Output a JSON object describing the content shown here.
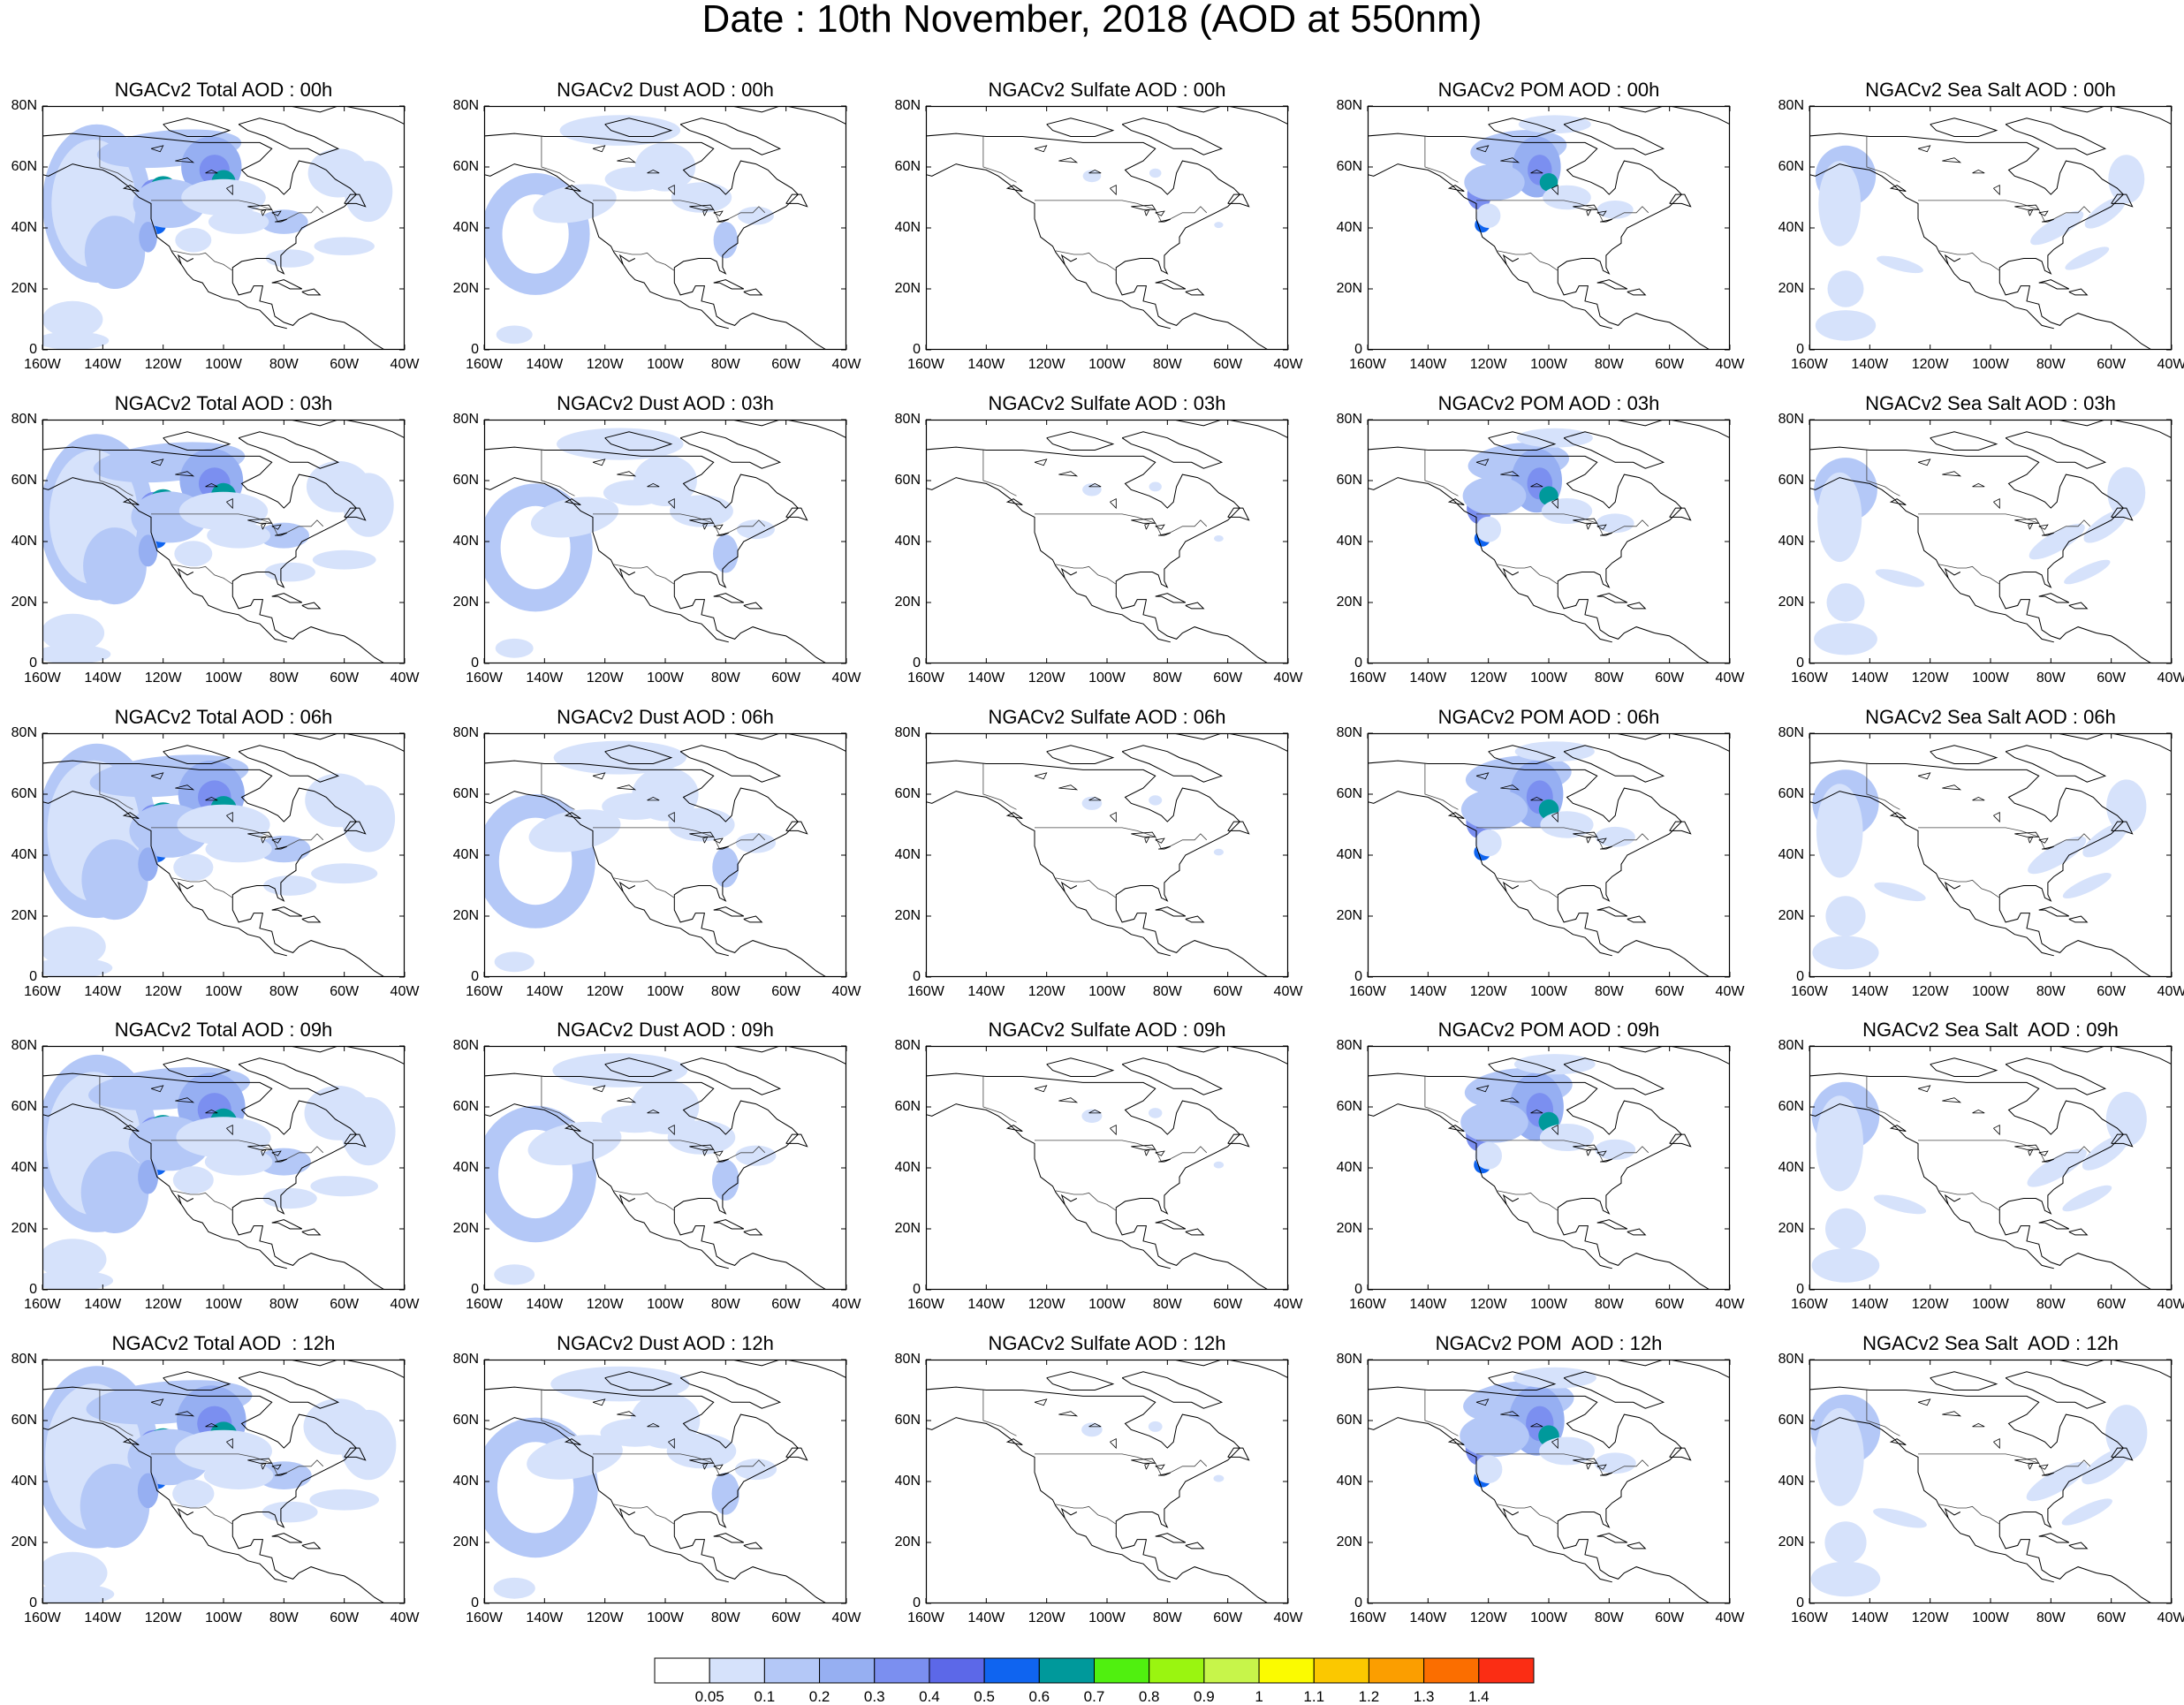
{
  "title": "Date : 10th November, 2018 (AOD at 550nm)",
  "x_tick_labels": [
    "160W",
    "140W",
    "120W",
    "100W",
    "80W",
    "60W",
    "40W"
  ],
  "y_tick_labels": [
    "0",
    "20N",
    "40N",
    "60N",
    "80N"
  ],
  "lon_range": [
    -160,
    -40
  ],
  "lat_range": [
    0,
    80
  ],
  "columns": [
    "total",
    "dust",
    "sulfate",
    "pom",
    "seasalt"
  ],
  "panels": [
    [
      "NGACv2 Total AOD : 00h",
      "NGACv2 Dust AOD : 00h",
      "NGACv2 Sulfate AOD : 00h",
      "NGACv2 POM AOD : 00h",
      "NGACv2 Sea Salt AOD : 00h"
    ],
    [
      "NGACv2 Total AOD : 03h",
      "NGACv2 Dust AOD : 03h",
      "NGACv2 Sulfate AOD : 03h",
      "NGACv2 POM AOD : 03h",
      "NGACv2 Sea Salt AOD : 03h"
    ],
    [
      "NGACv2 Total AOD : 06h",
      "NGACv2 Dust AOD : 06h",
      "NGACv2 Sulfate AOD : 06h",
      "NGACv2 POM AOD : 06h",
      "NGACv2 Sea Salt AOD : 06h"
    ],
    [
      "NGACv2 Total AOD : 09h",
      "NGACv2 Dust AOD : 09h",
      "NGACv2 Sulfate AOD : 09h",
      "NGACv2 POM AOD : 09h",
      "NGACv2 Sea Salt  AOD : 09h"
    ],
    [
      "NGACv2 Total AOD  : 12h",
      "NGACv2 Dust AOD : 12h",
      "NGACv2 Sulfate AOD : 12h",
      "NGACv2 POM  AOD : 12h",
      "NGACv2 Sea Salt  AOD : 12h"
    ]
  ],
  "colorbar": {
    "colors": [
      "#ffffff",
      "#d6e2fb",
      "#b4c8f7",
      "#96aff2",
      "#7b8ff0",
      "#5c68e8",
      "#0f64f0",
      "#00999b",
      "#50f00f",
      "#9af510",
      "#c7f54a",
      "#fbfb00",
      "#fbc800",
      "#fb9e00",
      "#fb6e00",
      "#fb2d14"
    ],
    "labels": [
      "0.05",
      "0.1",
      "0.2",
      "0.3",
      "0.4",
      "0.5",
      "0.6",
      "0.7",
      "0.8",
      "0.9",
      "1",
      "1.1",
      "1.2",
      "1.3",
      "1.4"
    ]
  }
}
